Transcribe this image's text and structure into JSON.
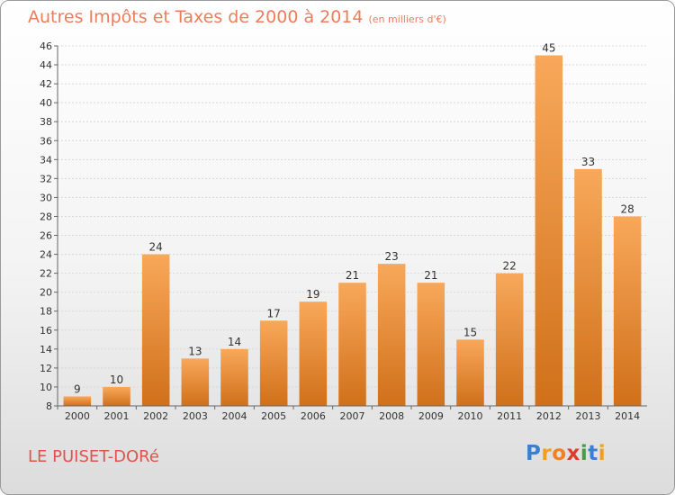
{
  "title": "Autres Impôts et Taxes de 2000 à 2014",
  "unit": "(en milliers d'€)",
  "commune": "LE PUISET-DORé",
  "logo": {
    "letters": [
      "P",
      "r",
      "o",
      "x",
      "i",
      "t",
      "i"
    ],
    "colors": [
      "#3a7fd0",
      "#f0a020",
      "#f08020",
      "#e23a2a",
      "#40a040",
      "#3a7fd0",
      "#f0a020"
    ]
  },
  "colors": {
    "bar_light": "#f8a85a",
    "bar_dark": "#d0701a",
    "title": "#ee7c5a",
    "commune": "#e0534c"
  },
  "chart_data": {
    "type": "bar",
    "categories": [
      "2000",
      "2001",
      "2002",
      "2003",
      "2004",
      "2005",
      "2006",
      "2007",
      "2008",
      "2009",
      "2010",
      "2011",
      "2012",
      "2013",
      "2014"
    ],
    "values": [
      9,
      10,
      24,
      13,
      14,
      17,
      19,
      21,
      23,
      21,
      15,
      22,
      45,
      33,
      28
    ],
    "ylim": [
      8,
      46
    ],
    "yticks": [
      8,
      10,
      12,
      14,
      16,
      18,
      20,
      22,
      24,
      26,
      28,
      30,
      32,
      34,
      36,
      38,
      40,
      42,
      44,
      46
    ],
    "grid": true,
    "xlabel": "",
    "ylabel": ""
  }
}
